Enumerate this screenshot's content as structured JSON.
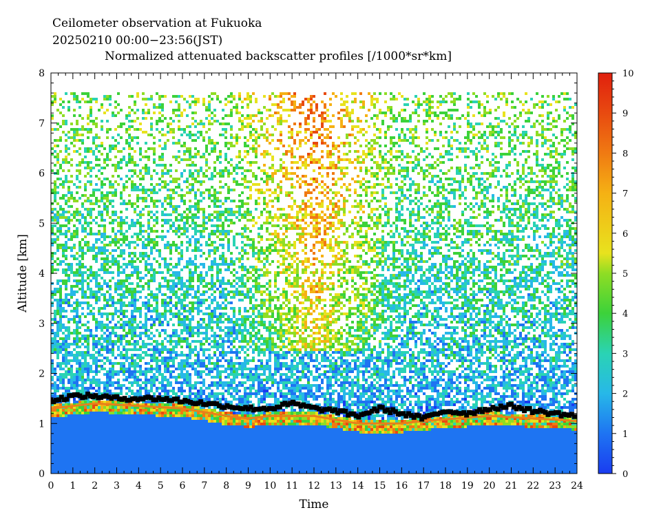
{
  "chart_data": {
    "type": "heatmap",
    "title_lines": [
      "Ceilometer observation at Fukuoka",
      "20250210   00:00−23:56(JST)",
      "Normalized attenuated backscatter profiles [/1000*sr*km]"
    ],
    "xlabel": "Time",
    "ylabel": "Altitude [km]",
    "xlim": [
      0,
      24
    ],
    "ylim": [
      0,
      8
    ],
    "x_ticks": [
      "0",
      "1",
      "2",
      "3",
      "4",
      "5",
      "6",
      "7",
      "8",
      "9",
      "10",
      "11",
      "12",
      "13",
      "14",
      "15",
      "16",
      "17",
      "18",
      "19",
      "20",
      "21",
      "22",
      "23",
      "24"
    ],
    "y_ticks": [
      "0",
      "1",
      "2",
      "3",
      "4",
      "5",
      "6",
      "7",
      "8"
    ],
    "colorbar": {
      "range": [
        0,
        10
      ],
      "ticks": [
        "0",
        "1",
        "2",
        "3",
        "4",
        "5",
        "6",
        "7",
        "8",
        "9",
        "10"
      ]
    },
    "data_top_altitude_km": 7.67,
    "cloud_base_height_km": {
      "time_h": [
        0,
        1,
        2,
        3,
        4,
        5,
        6,
        7,
        8,
        9,
        10,
        11,
        12,
        13,
        14,
        15,
        16,
        17,
        18,
        19,
        20,
        21,
        22,
        23,
        24
      ],
      "height": [
        1.45,
        1.55,
        1.55,
        1.5,
        1.5,
        1.5,
        1.45,
        1.4,
        1.35,
        1.3,
        1.3,
        1.4,
        1.3,
        1.25,
        1.15,
        1.3,
        1.2,
        1.1,
        1.25,
        1.2,
        1.3,
        1.35,
        1.25,
        1.2,
        1.15
      ]
    },
    "boundary_layer_top_km": {
      "time_h": [
        0,
        2,
        4,
        6,
        8,
        9,
        10,
        12,
        14,
        16,
        17,
        20,
        24
      ],
      "height": [
        1.3,
        1.4,
        1.35,
        1.3,
        1.15,
        1.1,
        1.15,
        1.15,
        1.0,
        1.0,
        1.05,
        1.15,
        1.05
      ]
    },
    "high_backscatter_region": {
      "time_range_h": [
        8,
        16
      ],
      "altitude_range_km": [
        2.5,
        7.67
      ]
    },
    "colors": {
      "c0": "#1a3cf0",
      "c1": "#1e74f2",
      "c2": "#27b8e8",
      "c3": "#2ad3b4",
      "c4": "#3cd23a",
      "c5": "#8fdd24",
      "c6": "#e8e21e",
      "c7": "#f5b114",
      "c8": "#f07a12",
      "c9": "#e84a10",
      "c10": "#e0200e"
    }
  }
}
